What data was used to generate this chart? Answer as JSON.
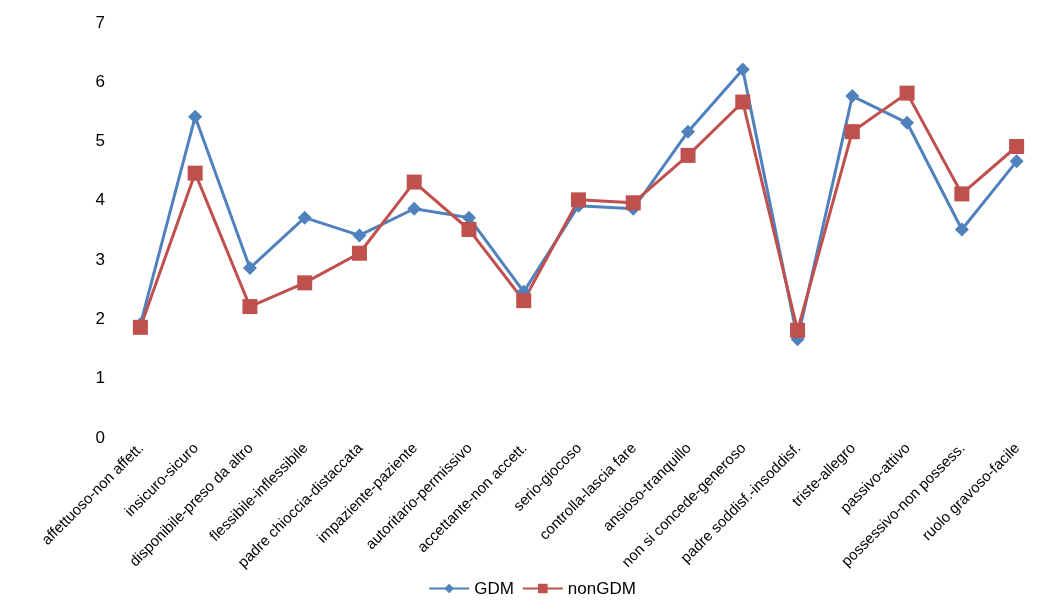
{
  "chart_data": {
    "type": "line",
    "categories": [
      "affettuoso-non affett.",
      "insicuro-sicuro",
      "disponibile-preso da altro",
      "flessibile-inflessibile",
      "padre chioccia-distaccata",
      "impaziente-paziente",
      "autoritario-permissivo",
      "accettante-non accett.",
      "serio-giocoso",
      "controlla-lascia fare",
      "ansioso-tranquillo",
      "non si concede-generoso",
      "padre soddisf.-insoddisf.",
      "triste-allegro",
      "passivo-attivo",
      "possessivo-non possess.",
      "ruolo gravoso-facile"
    ],
    "series": [
      {
        "name": "GDM",
        "color": "#4f81bd",
        "marker": "diamond",
        "values": [
          1.9,
          5.4,
          2.85,
          3.7,
          3.4,
          3.85,
          3.7,
          2.45,
          3.9,
          3.85,
          5.15,
          6.2,
          1.65,
          5.75,
          5.3,
          3.5,
          4.65
        ]
      },
      {
        "name": "nonGDM",
        "color": "#c0504d",
        "marker": "square",
        "values": [
          1.85,
          4.45,
          2.2,
          2.6,
          3.1,
          4.3,
          3.5,
          2.3,
          4.0,
          3.95,
          4.75,
          5.65,
          1.8,
          5.15,
          5.8,
          4.1,
          4.9
        ]
      }
    ],
    "ylim": [
      0,
      7
    ],
    "yticks": [
      0,
      1,
      2,
      3,
      4,
      5,
      6,
      7
    ],
    "grid": false,
    "legend": "bottom"
  }
}
